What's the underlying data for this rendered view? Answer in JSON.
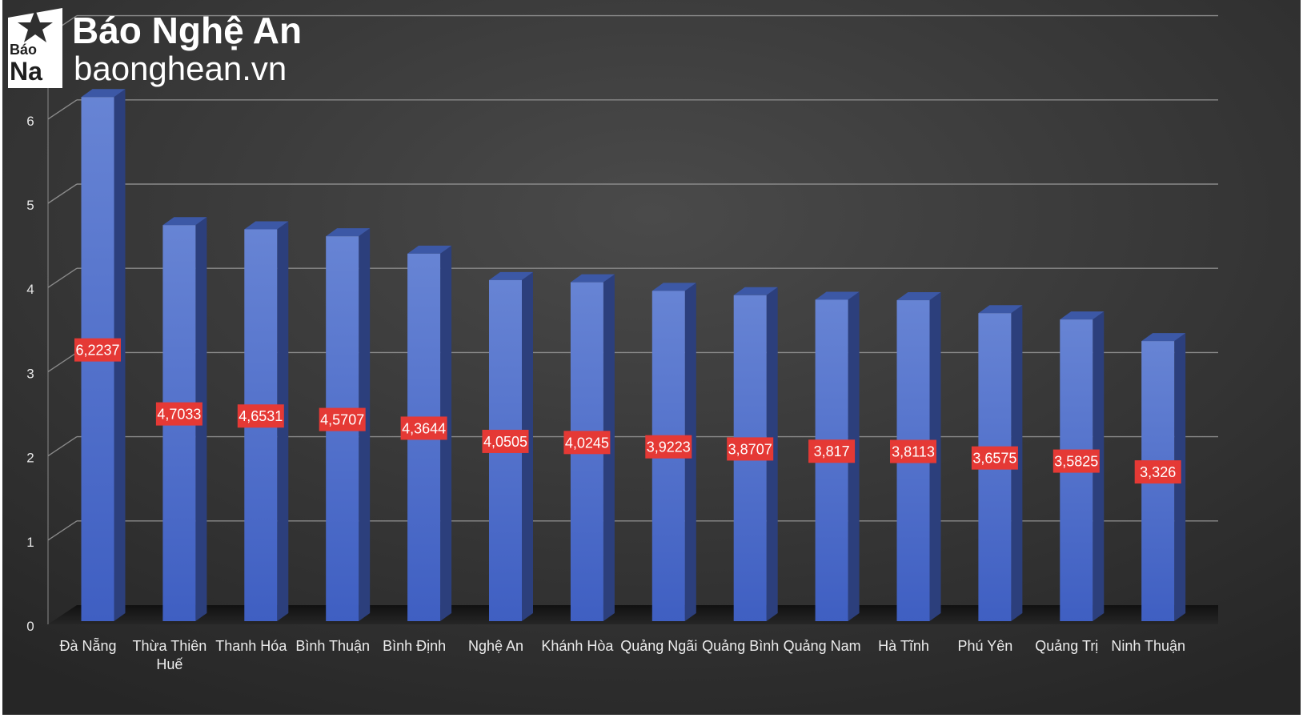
{
  "brand": {
    "title": "Báo Nghệ An",
    "url": "baonghean.vn",
    "logo_line1": "Báo",
    "logo_line2": "Na"
  },
  "chart_data": {
    "type": "bar",
    "categories": [
      "Đà Nẵng",
      "Thừa Thiên Huế",
      "Thanh Hóa",
      "Bình Thuận",
      "Bình Định",
      "Nghệ An",
      "Khánh Hòa",
      "Quảng Ngãi",
      "Quảng Bình",
      "Quảng Nam",
      "Hà Tĩnh",
      "Phú Yên",
      "Quảng Trị",
      "Ninh Thuận"
    ],
    "values": [
      6.2237,
      4.7033,
      4.6531,
      4.5707,
      4.3644,
      4.0505,
      4.0245,
      3.9223,
      3.8707,
      3.817,
      3.8113,
      3.6575,
      3.5825,
      3.326
    ],
    "value_labels": [
      "6,2237",
      "4,7033",
      "4,6531",
      "4,5707",
      "4,3644",
      "4,0505",
      "4,0245",
      "3,9223",
      "3,8707",
      "3,817",
      "3,8113",
      "3,6575",
      "3,5825",
      "3,326"
    ],
    "title": "",
    "xlabel": "",
    "ylabel": "",
    "ylim": [
      0,
      7
    ],
    "y_ticks": [
      "0",
      "1",
      "2",
      "3",
      "4",
      "5",
      "6",
      "7"
    ],
    "grid": true,
    "legend": "none",
    "style": "3d-column"
  },
  "colors": {
    "background": "#2f2f2f",
    "bar_front": "#4a6bc8",
    "bar_side": "#2c3f7c",
    "bar_top": "#3c58a6",
    "label_bg": "#e53935",
    "grid": "#8a8a8a"
  }
}
